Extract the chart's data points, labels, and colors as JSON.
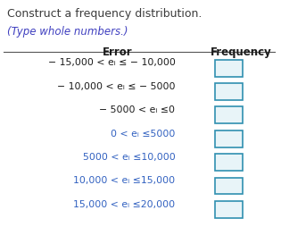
{
  "title": "Construct a frequency distribution.",
  "subtitle": "(Type whole numbers.)",
  "col_header_error": "Error",
  "col_header_freq": "Frequency",
  "rows": [
    "− 15,000 < eᵢ ≤ − 10,000",
    "− 10,000 < eᵢ ≤ − 5000",
    "− 5000 < eᵢ ≤0",
    "0 < eᵢ ≤5000",
    "5000 < eᵢ ≤10,000",
    "10,000 < eᵢ ≤15,000",
    "15,000 < eᵢ ≤20,000"
  ],
  "title_color": "#3c3c3c",
  "subtitle_color": "#4040c0",
  "header_color": "#1a1a1a",
  "row_colors": [
    "#1a1a1a",
    "#1a1a1a",
    "#1a1a1a",
    "#3060c0",
    "#3060c0",
    "#3060c0",
    "#3060c0"
  ],
  "box_edge_color": "#3090b0",
  "box_face_color": "#e8f4f8",
  "line_color": "#555555",
  "background_color": "#ffffff",
  "figwidth": 3.15,
  "figheight": 2.54,
  "dpi": 100
}
